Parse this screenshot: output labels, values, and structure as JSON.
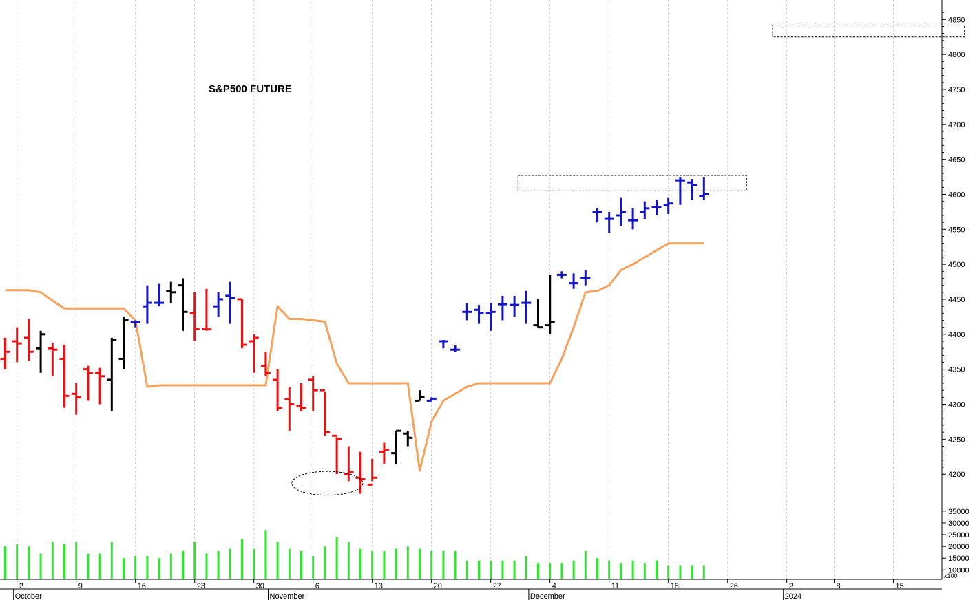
{
  "chart_data": {
    "type": "ohlc",
    "title": "S&P500 FUTURE",
    "colors": {
      "up": "#1414c8",
      "down": "#ee1010",
      "neutral": "#000000",
      "line": "#f5a25d",
      "volume": "#2ee82e",
      "grid": "#cfcfcf",
      "box": "#000000"
    },
    "price_axis": {
      "ylim": [
        4150,
        4870
      ],
      "ticks": [
        4200,
        4250,
        4300,
        4350,
        4400,
        4450,
        4500,
        4550,
        4600,
        4650,
        4700,
        4750,
        4800,
        4850
      ]
    },
    "volume_axis": {
      "ylim": [
        6000,
        37000
      ],
      "ticks": [
        10000,
        15000,
        20000,
        25000,
        30000,
        35000
      ],
      "unit_label": "x100"
    },
    "x_axis": {
      "domain": [
        -1,
        59
      ],
      "ticks": [
        {
          "i": 1,
          "label": "2"
        },
        {
          "i": 6,
          "label": "9"
        },
        {
          "i": 11,
          "label": "16"
        },
        {
          "i": 16,
          "label": "23"
        },
        {
          "i": 21,
          "label": "30"
        },
        {
          "i": 26,
          "label": "6"
        },
        {
          "i": 31,
          "label": "13"
        },
        {
          "i": 36,
          "label": "20"
        },
        {
          "i": 41,
          "label": "27"
        },
        {
          "i": 46,
          "label": "4"
        },
        {
          "i": 51,
          "label": "11"
        },
        {
          "i": 56,
          "label": "18"
        },
        {
          "i": 61,
          "label": "26"
        },
        {
          "i": 66,
          "label": "2"
        },
        {
          "i": 70,
          "label": "8"
        },
        {
          "i": 75,
          "label": "15"
        }
      ],
      "month_labels": [
        {
          "i": 1,
          "label": "October"
        },
        {
          "i": 22.5,
          "label": "November"
        },
        {
          "i": 44.5,
          "label": "December"
        },
        {
          "i": 66,
          "label": "2024"
        }
      ]
    },
    "bars": [
      {
        "o": 4365,
        "h": 4395,
        "l": 4350,
        "c": 4375,
        "color": "down",
        "vol": 20000
      },
      {
        "o": 4390,
        "h": 4410,
        "l": 4360,
        "c": 4387,
        "color": "down",
        "vol": 21000
      },
      {
        "o": 4395,
        "h": 4422,
        "l": 4362,
        "c": 4375,
        "color": "down",
        "vol": 20000
      },
      {
        "o": 4380,
        "h": 4405,
        "l": 4345,
        "c": 4400,
        "color": "neutral",
        "vol": 17000
      },
      {
        "o": 4380,
        "h": 4388,
        "l": 4340,
        "c": 4378,
        "color": "down",
        "vol": 22000
      },
      {
        "o": 4365,
        "h": 4385,
        "l": 4295,
        "c": 4312,
        "color": "down",
        "vol": 21000
      },
      {
        "o": 4315,
        "h": 4330,
        "l": 4285,
        "c": 4310,
        "color": "down",
        "vol": 22000
      },
      {
        "o": 4350,
        "h": 4355,
        "l": 4305,
        "c": 4345,
        "color": "down",
        "vol": 17000
      },
      {
        "o": 4345,
        "h": 4352,
        "l": 4300,
        "c": 4340,
        "color": "down",
        "vol": 17000
      },
      {
        "o": 4335,
        "h": 4395,
        "l": 4290,
        "c": 4392,
        "color": "neutral",
        "vol": 22000
      },
      {
        "o": 4365,
        "h": 4425,
        "l": 4350,
        "c": 4420,
        "color": "neutral",
        "vol": 15000
      },
      {
        "o": 4418,
        "h": 4420,
        "l": 4410,
        "c": 4418,
        "color": "up",
        "vol": 16000
      },
      {
        "o": 4440,
        "h": 4470,
        "l": 4415,
        "c": 4445,
        "color": "up",
        "vol": 16000
      },
      {
        "o": 4445,
        "h": 4472,
        "l": 4440,
        "c": 4445,
        "color": "up",
        "vol": 15000
      },
      {
        "o": 4462,
        "h": 4475,
        "l": 4445,
        "c": 4460,
        "color": "neutral",
        "vol": 17000
      },
      {
        "o": 4470,
        "h": 4480,
        "l": 4405,
        "c": 4432,
        "color": "neutral",
        "vol": 18000
      },
      {
        "o": 4430,
        "h": 4460,
        "l": 4390,
        "c": 4408,
        "color": "down",
        "vol": 22000
      },
      {
        "o": 4408,
        "h": 4465,
        "l": 4405,
        "c": 4407,
        "color": "down",
        "vol": 17000
      },
      {
        "o": 4440,
        "h": 4460,
        "l": 4425,
        "c": 4450,
        "color": "up",
        "vol": 18000
      },
      {
        "o": 4455,
        "h": 4475,
        "l": 4415,
        "c": 4452,
        "color": "up",
        "vol": 19000
      },
      {
        "o": 4450,
        "h": 4450,
        "l": 4380,
        "c": 4385,
        "color": "down",
        "vol": 23000
      },
      {
        "o": 4390,
        "h": 4400,
        "l": 4345,
        "c": 4395,
        "color": "down",
        "vol": 19000
      },
      {
        "o": 4355,
        "h": 4375,
        "l": 4340,
        "c": 4345,
        "color": "down",
        "vol": 27000
      },
      {
        "o": 4335,
        "h": 4350,
        "l": 4290,
        "c": 4295,
        "color": "down",
        "vol": 22000
      },
      {
        "o": 4307,
        "h": 4325,
        "l": 4262,
        "c": 4300,
        "color": "down",
        "vol": 19000
      },
      {
        "o": 4297,
        "h": 4330,
        "l": 4290,
        "c": 4295,
        "color": "down",
        "vol": 18000
      },
      {
        "o": 4335,
        "h": 4340,
        "l": 4290,
        "c": 4320,
        "color": "down",
        "vol": 16000
      },
      {
        "o": 4320,
        "h": 4318,
        "l": 4255,
        "c": 4260,
        "color": "down",
        "vol": 20000
      },
      {
        "o": 4255,
        "h": 4253,
        "l": 4200,
        "c": 4250,
        "color": "down",
        "vol": 24000
      },
      {
        "o": 4200,
        "h": 4240,
        "l": 4190,
        "c": 4203,
        "color": "down",
        "vol": 22000
      },
      {
        "o": 4195,
        "h": 4232,
        "l": 4172,
        "c": 4193,
        "color": "down",
        "vol": 19000
      },
      {
        "o": 4185,
        "h": 4222,
        "l": 4190,
        "c": 4195,
        "color": "down",
        "vol": 18000
      },
      {
        "o": 4232,
        "h": 4245,
        "l": 4215,
        "c": 4235,
        "color": "down",
        "vol": 18000
      },
      {
        "o": 4230,
        "h": 4262,
        "l": 4215,
        "c": 4262,
        "color": "neutral",
        "vol": 19000
      },
      {
        "o": 4258,
        "h": 4262,
        "l": 4240,
        "c": 4252,
        "color": "neutral",
        "vol": 20000
      },
      {
        "o": 4305,
        "h": 4320,
        "l": 4305,
        "c": 4310,
        "color": "neutral",
        "vol": 19000
      },
      {
        "o": 4305,
        "h": 4310,
        "l": 4305,
        "c": 4308,
        "color": "up",
        "vol": 18000
      },
      {
        "o": 4390,
        "h": 4392,
        "l": 4380,
        "c": 4390,
        "color": "up",
        "vol": 18000
      },
      {
        "o": 4378,
        "h": 4385,
        "l": 4375,
        "c": 4378,
        "color": "up",
        "vol": 18000
      },
      {
        "o": 4432,
        "h": 4445,
        "l": 4420,
        "c": 4432,
        "color": "up",
        "vol": 14000
      },
      {
        "o": 4435,
        "h": 4442,
        "l": 4415,
        "c": 4430,
        "color": "up",
        "vol": 14000
      },
      {
        "o": 4430,
        "h": 4445,
        "l": 4405,
        "c": 4432,
        "color": "up",
        "vol": 14000
      },
      {
        "o": 4443,
        "h": 4455,
        "l": 4420,
        "c": 4443,
        "color": "up",
        "vol": 14000
      },
      {
        "o": 4442,
        "h": 4455,
        "l": 4425,
        "c": 4442,
        "color": "up",
        "vol": 14000
      },
      {
        "o": 4445,
        "h": 4462,
        "l": 4415,
        "c": 4445,
        "color": "up",
        "vol": 16000
      },
      {
        "o": 4413,
        "h": 4450,
        "l": 4410,
        "c": 4410,
        "color": "neutral",
        "vol": 13000
      },
      {
        "o": 4413,
        "h": 4485,
        "l": 4400,
        "c": 4418,
        "color": "neutral",
        "vol": 13000
      },
      {
        "o": 4485,
        "h": 4490,
        "l": 4480,
        "c": 4485,
        "color": "up",
        "vol": 13000
      },
      {
        "o": 4473,
        "h": 4487,
        "l": 4465,
        "c": 4473,
        "color": "up",
        "vol": 14000
      },
      {
        "o": 4480,
        "h": 4492,
        "l": 4470,
        "c": 4480,
        "color": "up",
        "vol": 18000
      },
      {
        "o": 4575,
        "h": 4580,
        "l": 4560,
        "c": 4575,
        "color": "up",
        "vol": 15000
      },
      {
        "o": 4565,
        "h": 4575,
        "l": 4545,
        "c": 4565,
        "color": "up",
        "vol": 14000
      },
      {
        "o": 4570,
        "h": 4595,
        "l": 4555,
        "c": 4575,
        "color": "up",
        "vol": 13000
      },
      {
        "o": 4563,
        "h": 4580,
        "l": 4550,
        "c": 4563,
        "color": "up",
        "vol": 14000
      },
      {
        "o": 4575,
        "h": 4590,
        "l": 4565,
        "c": 4580,
        "color": "up",
        "vol": 13000
      },
      {
        "o": 4582,
        "h": 4592,
        "l": 4570,
        "c": 4582,
        "color": "up",
        "vol": 14000
      },
      {
        "o": 4585,
        "h": 4595,
        "l": 4572,
        "c": 4587,
        "color": "up",
        "vol": 12000
      },
      {
        "o": 4620,
        "h": 4625,
        "l": 4585,
        "c": 4620,
        "color": "up",
        "vol": 12000
      },
      {
        "o": 4617,
        "h": 4622,
        "l": 4592,
        "c": 4613,
        "color": "up",
        "vol": 12000
      },
      {
        "o": 4598,
        "h": 4625,
        "l": 4592,
        "c": 4600,
        "color": "up",
        "vol": 12000
      }
    ],
    "line_values": [
      4463,
      4463,
      4463,
      4460,
      4448,
      4437,
      4437,
      4437,
      4437,
      4437,
      4437,
      4420,
      4325,
      4327,
      4327,
      4327,
      4327,
      4327,
      4327,
      4327,
      4327,
      4327,
      4327,
      4440,
      4422,
      4422,
      4420,
      4418,
      4358,
      4330,
      4330,
      4330,
      4330,
      4330,
      4330,
      4205,
      4275,
      4305,
      4315,
      4325,
      4330,
      4330,
      4330,
      4330,
      4330,
      4330,
      4330,
      4365,
      4410,
      4460,
      4462,
      4470,
      4492,
      4500,
      4510,
      4520,
      4530,
      4530,
      4530,
      4530
    ],
    "volume_values": [
      20000,
      21000,
      20000,
      17000,
      22000,
      21000,
      22000,
      17000,
      17000,
      22000,
      15000,
      16000,
      16000,
      15000,
      17000,
      18000,
      22000,
      17000,
      18000,
      19000,
      23000,
      19000,
      27000,
      22000,
      19000,
      18000,
      16000,
      20000,
      24000,
      22000,
      19000,
      18000,
      18000,
      19000,
      20000,
      19000,
      18000,
      18000,
      18000,
      14000,
      14000,
      14000,
      14000,
      14000,
      16000,
      13000,
      13000,
      13000,
      14000,
      18000,
      15000,
      14000,
      13000,
      14000,
      13000,
      14000,
      12000,
      12000,
      12000,
      12000
    ],
    "annotations": {
      "boxes": [
        {
          "i0": 43.3,
          "i1": 62.6,
          "y0": 4605,
          "y1": 4627
        },
        {
          "i0": 64.8,
          "i1": 81.0,
          "y0": 4825,
          "y1": 4842
        }
      ],
      "ellipses": [
        {
          "i": 27.2,
          "y": 4187,
          "ri": 3.0,
          "ry": 17
        }
      ]
    }
  }
}
